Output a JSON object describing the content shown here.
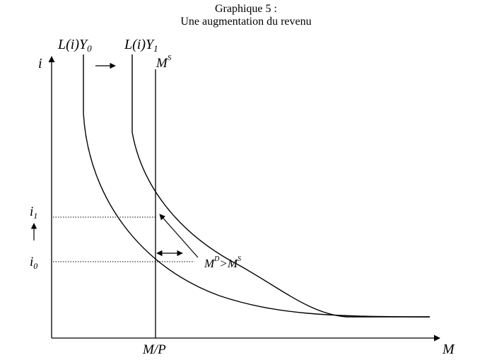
{
  "title": {
    "line1": "Graphique 5 :",
    "line2": "Une augmentation du revenu"
  },
  "labels": {
    "curve_y0_base": "L(i)Y",
    "curve_y0_sub": "0",
    "curve_y1_base": "L(i)Y",
    "curve_y1_sub": "1",
    "supply_base": "M",
    "supply_sup": "S",
    "y_axis": "i",
    "x_axis": "M",
    "i1_base": "i",
    "i1_sub": "1",
    "i0_base": "i",
    "i0_sub": "0",
    "mp": "M/P",
    "excess_m1": "M",
    "excess_sup1": "D",
    "excess_op": ">M",
    "excess_sup2": "S"
  },
  "colors": {
    "ink": "#000000",
    "background": "#ffffff"
  }
}
